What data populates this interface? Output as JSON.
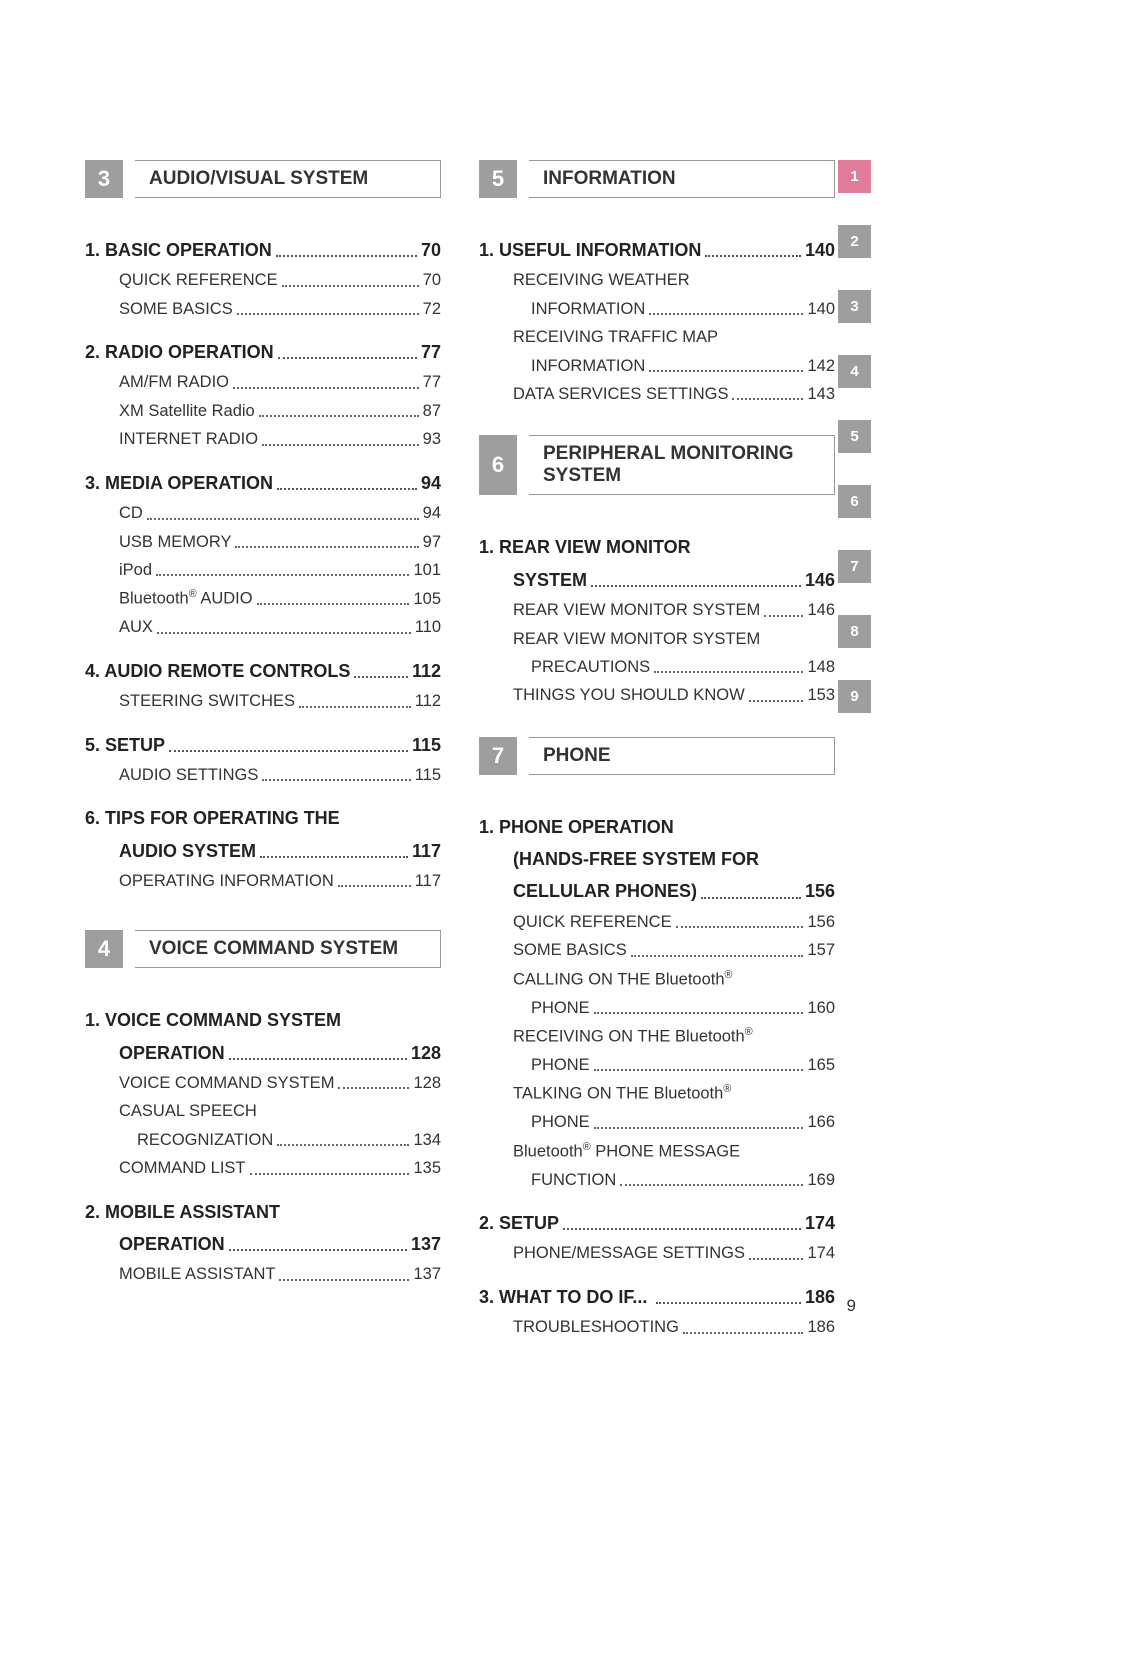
{
  "page_number": "9",
  "text_color": "#333333",
  "background_color": "#ffffff",
  "tab_colors": {
    "active": "#de7c9a",
    "inactive": "#9e9e9e"
  },
  "side_tabs": [
    "1",
    "2",
    "3",
    "4",
    "5",
    "6",
    "7",
    "8",
    "9"
  ],
  "side_tab_active_index": 0,
  "left": {
    "chapters": [
      {
        "num": "3",
        "title": "AUDIO/VISUAL SYSTEM",
        "sections": [
          {
            "label": "1. BASIC OPERATION",
            "page": "70",
            "entries": [
              {
                "label": "QUICK REFERENCE",
                "page": "70"
              },
              {
                "label": "SOME BASICS",
                "page": "72"
              }
            ]
          },
          {
            "label": "2. RADIO OPERATION",
            "page": "77",
            "entries": [
              {
                "label": "AM/FM RADIO",
                "page": "77"
              },
              {
                "label": "XM Satellite Radio",
                "page": "87"
              },
              {
                "label": "INTERNET RADIO",
                "page": "93"
              }
            ]
          },
          {
            "label": "3. MEDIA OPERATION",
            "page": "94",
            "entries": [
              {
                "label": "CD",
                "page": "94"
              },
              {
                "label": "USB MEMORY",
                "page": "97"
              },
              {
                "label": "iPod",
                "page": "101"
              },
              {
                "label_html": "Bluetooth<sup>®</sup> AUDIO",
                "page": "105"
              },
              {
                "label": "AUX",
                "page": "110"
              }
            ]
          },
          {
            "label": "4. AUDIO REMOTE CONTROLS",
            "page": "112",
            "entries": [
              {
                "label": "STEERING SWITCHES",
                "page": "112"
              }
            ]
          },
          {
            "label": "5. SETUP",
            "page": "115",
            "entries": [
              {
                "label": "AUDIO SETTINGS",
                "page": "115"
              }
            ]
          },
          {
            "label": "6. TIPS FOR OPERATING THE",
            "label_cont": "AUDIO SYSTEM",
            "page": "117",
            "entries": [
              {
                "label": "OPERATING INFORMATION",
                "page": "117"
              }
            ]
          }
        ]
      },
      {
        "num": "4",
        "title": "VOICE COMMAND SYSTEM",
        "sections": [
          {
            "label": "1. VOICE COMMAND SYSTEM",
            "label_cont": "OPERATION",
            "page": "128",
            "entries": [
              {
                "label": "VOICE COMMAND SYSTEM",
                "page": "128"
              },
              {
                "label": "CASUAL SPEECH",
                "label_cont": "RECOGNIZATION",
                "page": "134"
              },
              {
                "label": "COMMAND LIST",
                "page": "135"
              }
            ]
          },
          {
            "label": "2. MOBILE ASSISTANT",
            "label_cont": "OPERATION",
            "page": "137",
            "entries": [
              {
                "label": "MOBILE ASSISTANT",
                "page": "137"
              }
            ]
          }
        ]
      }
    ]
  },
  "right": {
    "chapters": [
      {
        "num": "5",
        "title": "INFORMATION",
        "sections": [
          {
            "label": "1. USEFUL INFORMATION",
            "page": "140",
            "entries": [
              {
                "label": "RECEIVING WEATHER",
                "label_cont": "INFORMATION",
                "page": "140"
              },
              {
                "label": "RECEIVING TRAFFIC MAP",
                "label_cont": "INFORMATION",
                "page": "142"
              },
              {
                "label": "DATA SERVICES SETTINGS",
                "page": "143"
              }
            ]
          }
        ]
      },
      {
        "num": "6",
        "title": "PERIPHERAL MONITORING SYSTEM",
        "tall": true,
        "sections": [
          {
            "label": "1. REAR VIEW MONITOR",
            "label_cont": "SYSTEM",
            "page": "146",
            "entries": [
              {
                "label": "REAR VIEW MONITOR SYSTEM",
                "page": "146"
              },
              {
                "label": "REAR VIEW MONITOR SYSTEM",
                "label_cont": "PRECAUTIONS",
                "page": "148"
              },
              {
                "label": "THINGS YOU SHOULD KNOW",
                "page": "153"
              }
            ]
          }
        ]
      },
      {
        "num": "7",
        "title": "PHONE",
        "sections": [
          {
            "label": "1. PHONE OPERATION",
            "label_mid": "(HANDS-FREE SYSTEM FOR",
            "label_cont": "CELLULAR PHONES)",
            "page": "156",
            "entries": [
              {
                "label": "QUICK REFERENCE",
                "page": "156"
              },
              {
                "label": "SOME BASICS",
                "page": "157"
              },
              {
                "label_html": "CALLING ON THE Bluetooth<sup>®</sup>",
                "label_cont": "PHONE",
                "page": "160"
              },
              {
                "label_html": "RECEIVING ON THE Bluetooth<sup>®</sup>",
                "label_cont": "PHONE",
                "page": "165"
              },
              {
                "label_html": "TALKING ON THE Bluetooth<sup>®</sup>",
                "label_cont": "PHONE",
                "page": "166"
              },
              {
                "label_html": "Bluetooth<sup>®</sup> PHONE MESSAGE",
                "label_cont": "FUNCTION",
                "page": "169"
              }
            ]
          },
          {
            "label": "2. SETUP",
            "page": "174",
            "entries": [
              {
                "label": "PHONE/MESSAGE SETTINGS",
                "page": "174"
              }
            ]
          },
          {
            "label": "3. WHAT TO DO IF... ",
            "page": "186",
            "entries": [
              {
                "label": "TROUBLESHOOTING",
                "page": "186"
              }
            ]
          }
        ]
      }
    ]
  }
}
